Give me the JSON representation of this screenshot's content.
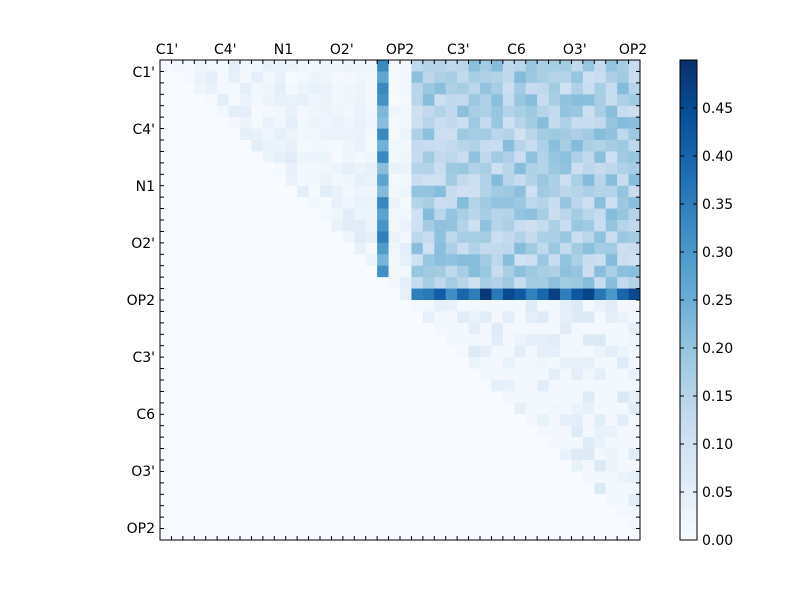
{
  "chart_data": {
    "type": "heatmap",
    "title": "",
    "xlabel": "",
    "ylabel": "",
    "x_tick_labels": [
      "C1'",
      "C4'",
      "N1",
      "O2'",
      "OP2",
      "C3'",
      "C6",
      "O3'",
      "OP2"
    ],
    "y_tick_labels": [
      "C1'",
      "C4'",
      "N1",
      "O2'",
      "OP2",
      "C3'",
      "C6",
      "O3'",
      "OP2"
    ],
    "grid_size": 42,
    "upper_triangle_only": true,
    "colorscale": "Blues",
    "colorbar": {
      "range": [
        0,
        0.5
      ],
      "tick_values": [
        0.0,
        0.05,
        0.1,
        0.15,
        0.2,
        0.25,
        0.3,
        0.35,
        0.4,
        0.45
      ],
      "tick_labels": [
        "0.00",
        "0.05",
        "0.10",
        "0.15",
        "0.20",
        "0.25",
        "0.30",
        "0.35",
        "0.40",
        "0.45"
      ]
    },
    "features": {
      "strong_row_index": 20,
      "strong_row_value_range": [
        0.3,
        0.49
      ],
      "strong_column_index": 19,
      "strong_column_value_range": [
        0.2,
        0.35
      ],
      "block_rows": [
        0,
        20
      ],
      "block_cols": [
        22,
        42
      ],
      "block_value_range": [
        0.1,
        0.22
      ],
      "background_value": 0.0
    }
  }
}
